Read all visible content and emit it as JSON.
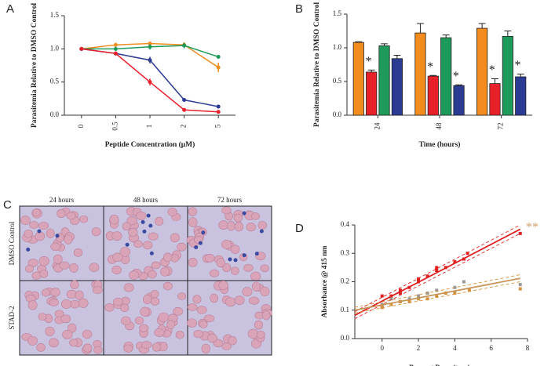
{
  "chart_data": [
    {
      "type": "line",
      "panel": "A",
      "ylabel": "Parasitemia Relative to DMSO Control",
      "xlabel": "Peptide Concentration (μM)",
      "categories": [
        "0",
        "0.5",
        "1",
        "2",
        "5"
      ],
      "ylim": [
        0,
        1.5
      ],
      "yticks": [
        {
          "value": 0,
          "label": "0.0"
        },
        0.5,
        {
          "value": 1,
          "label": "1.0"
        },
        1.5
      ],
      "series": [
        {
          "color": "#f28c1e",
          "values": [
            1,
            1.06,
            1.08,
            1.06,
            0.72
          ],
          "errors": [
            0,
            0.03,
            0.03,
            0.04,
            0.07
          ]
        },
        {
          "color": "#1e9a5b",
          "values": [
            1,
            1.0,
            1.03,
            1.05,
            0.88
          ],
          "errors": [
            0,
            0.03,
            0.04,
            0.04,
            0.03
          ]
        },
        {
          "color": "#2b3a93",
          "values": [
            1,
            0.93,
            0.83,
            0.23,
            0.13
          ],
          "errors": [
            0,
            0.03,
            0.05,
            0.03,
            0.03
          ]
        },
        {
          "color": "#e8202a",
          "values": [
            1,
            0.93,
            0.5,
            0.08,
            0.05
          ],
          "errors": [
            0,
            0.02,
            0.05,
            0.01,
            0.01
          ]
        }
      ]
    },
    {
      "type": "bar",
      "panel": "B",
      "ylabel": "Parasitemia Relative to DMSO Control",
      "xlabel": "Time (hours)",
      "categories": [
        "24",
        "48",
        "72"
      ],
      "ylim": [
        0,
        1.5
      ],
      "yticks": [
        {
          "value": 0,
          "label": "0.0"
        },
        0.5,
        {
          "value": 1,
          "label": "1.0"
        },
        1.5
      ],
      "series": [
        {
          "color": "#f28c1e",
          "values": [
            1.08,
            1.22,
            1.29
          ],
          "errors": [
            0.01,
            0.14,
            0.07
          ]
        },
        {
          "color": "#e8202a",
          "values": [
            0.64,
            0.58,
            0.47
          ],
          "errors": [
            0.03,
            0.01,
            0.07
          ]
        },
        {
          "color": "#1e9a5b",
          "values": [
            1.03,
            1.15,
            1.17
          ],
          "errors": [
            0.03,
            0.04,
            0.08
          ]
        },
        {
          "color": "#2b3a93",
          "values": [
            0.84,
            0.44,
            0.57
          ],
          "errors": [
            0.05,
            0.01,
            0.04
          ]
        }
      ],
      "annotations": [
        {
          "text": "*",
          "series": 1,
          "category": 0
        },
        {
          "text": "*",
          "series": 1,
          "category": 1
        },
        {
          "text": "*",
          "series": 3,
          "category": 1
        },
        {
          "text": "*",
          "series": 1,
          "category": 2
        },
        {
          "text": "*",
          "series": 3,
          "category": 2
        }
      ]
    },
    {
      "type": "scatter",
      "panel": "D",
      "ylabel": "Absorbance @ 415 nm",
      "xlabel": "Percent Parasitemia",
      "xlim": [
        -1.5,
        8
      ],
      "xticks": [
        0,
        2,
        4,
        6,
        8
      ],
      "ylim": [
        0,
        0.4
      ],
      "yticks": [
        {
          "value": 0,
          "label": "0.0"
        },
        0.1,
        0.2,
        0.3,
        0.4
      ],
      "series": [
        {
          "style": "points",
          "color": "#e02020",
          "x": [
            0,
            0,
            0.5,
            1,
            1,
            1.5,
            2,
            2,
            2.5,
            3,
            3,
            3.5,
            4,
            4.5,
            4.7,
            7.6
          ],
          "values": [
            0.11,
            0.15,
            0.15,
            0.16,
            0.17,
            0.18,
            0.2,
            0.21,
            0.22,
            0.24,
            0.25,
            0.25,
            0.27,
            0.28,
            0.3,
            0.37
          ]
        },
        {
          "style": "points",
          "color": "#999999",
          "x": [
            0,
            0.5,
            1,
            1.5,
            2,
            2.5,
            3,
            4,
            4.5,
            7.6
          ],
          "values": [
            0.12,
            0.14,
            0.13,
            0.14,
            0.15,
            0.16,
            0.17,
            0.18,
            0.2,
            0.19
          ]
        },
        {
          "style": "points",
          "color": "#d4903a",
          "x": [
            0,
            0.5,
            1,
            1.5,
            2,
            2.5,
            3,
            3.5,
            4,
            4.8,
            7.6
          ],
          "values": [
            0.11,
            0.12,
            0.13,
            0.13,
            0.14,
            0.14,
            0.15,
            0.16,
            0.16,
            0.17,
            0.175
          ]
        },
        {
          "style": "line",
          "color": "#e02020",
          "x": [
            -1.5,
            7.6
          ],
          "values": [
            0.082,
            0.385
          ]
        },
        {
          "style": "dashed",
          "color": "#e02020",
          "x": [
            -1.5,
            7.6
          ],
          "values": [
            0.07,
            0.37
          ]
        },
        {
          "style": "dashed",
          "color": "#e02020",
          "x": [
            -1.5,
            7.6
          ],
          "values": [
            0.095,
            0.4
          ]
        },
        {
          "style": "line",
          "color": "#c8955a",
          "x": [
            -1.5,
            7.6
          ],
          "values": [
            0.1,
            0.212
          ]
        },
        {
          "style": "dashed",
          "color": "#d4903a",
          "x": [
            -1.5,
            7.6
          ],
          "values": [
            0.09,
            0.2
          ]
        },
        {
          "style": "dashed",
          "color": "#d4903a",
          "x": [
            -1.5,
            7.6
          ],
          "values": [
            0.11,
            0.225
          ]
        }
      ],
      "annotations": [
        {
          "text": "**",
          "color": "#d4a070"
        }
      ]
    }
  ],
  "images": {
    "panel": "C",
    "columns": [
      "24 hours",
      "48 hours",
      "72 hours"
    ],
    "rows": [
      "DMSO Control",
      "STAD-2"
    ]
  }
}
